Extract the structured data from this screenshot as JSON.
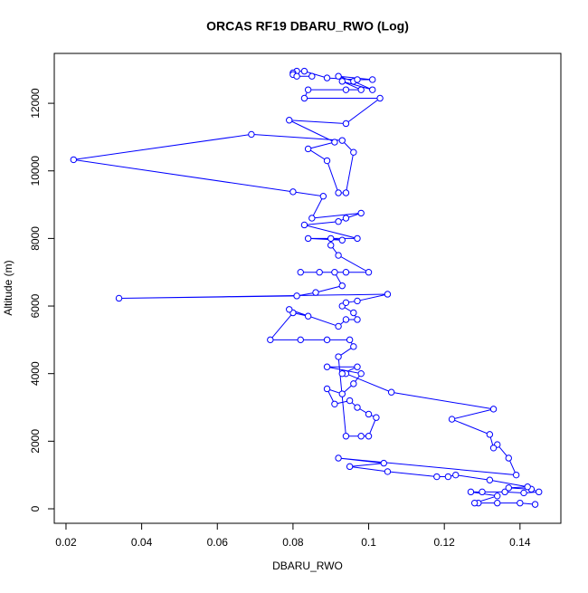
{
  "chart_data": {
    "type": "line",
    "title": "ORCAS RF19 DBARU_RWO (Log)",
    "x_label": "DBARU_RWO",
    "y_label": "Altitude (m)",
    "color": "#0000ff",
    "markers": true,
    "xlim": [
      0.0169,
      0.1508
    ],
    "ylim": [
      -429,
      13476
    ],
    "xticks": [
      0.02,
      0.04,
      0.06,
      0.08,
      0.1,
      0.12,
      0.14
    ],
    "yticks": [
      0,
      2000,
      4000,
      6000,
      8000,
      10000,
      12000
    ],
    "x": [
      0.144,
      0.14,
      0.134,
      0.129,
      0.128,
      0.134,
      0.127,
      0.13,
      0.136,
      0.141,
      0.145,
      0.143,
      0.137,
      0.142,
      0.132,
      0.123,
      0.121,
      0.118,
      0.105,
      0.095,
      0.104,
      0.092,
      0.139,
      0.137,
      0.134,
      0.133,
      0.132,
      0.122,
      0.133,
      0.106,
      0.094,
      0.093,
      0.097,
      0.089,
      0.098,
      0.096,
      0.093,
      0.089,
      0.091,
      0.095,
      0.097,
      0.1,
      0.102,
      0.1,
      0.098,
      0.094,
      0.092,
      0.096,
      0.095,
      0.089,
      0.082,
      0.074,
      0.08,
      0.084,
      0.079,
      0.092,
      0.094,
      0.097,
      0.096,
      0.093,
      0.094,
      0.097,
      0.105,
      0.034,
      0.081,
      0.086,
      0.093,
      0.091,
      0.082,
      0.087,
      0.094,
      0.1,
      0.092,
      0.09,
      0.09,
      0.093,
      0.084,
      0.097,
      0.083,
      0.092,
      0.094,
      0.098,
      0.085,
      0.088,
      0.08,
      0.022,
      0.069,
      0.093,
      0.096,
      0.094,
      0.092,
      0.089,
      0.084,
      0.091,
      0.079,
      0.094,
      0.103,
      0.083,
      0.084,
      0.094,
      0.098,
      0.093,
      0.101,
      0.096,
      0.092,
      0.101,
      0.097,
      0.089,
      0.083,
      0.081,
      0.08,
      0.08,
      0.081,
      0.085
    ],
    "y": [
      130,
      170,
      170,
      170,
      170,
      380,
      500,
      500,
      500,
      470,
      500,
      580,
      620,
      650,
      850,
      1000,
      950,
      950,
      1100,
      1250,
      1350,
      1500,
      1000,
      1500,
      1900,
      1800,
      2200,
      2650,
      2950,
      3450,
      4000,
      4000,
      4200,
      4200,
      4000,
      3700,
      3400,
      3550,
      3100,
      3200,
      3000,
      2800,
      2700,
      2150,
      2150,
      2150,
      4500,
      4800,
      5000,
      5000,
      5000,
      5000,
      5800,
      5700,
      5900,
      5400,
      5600,
      5600,
      5800,
      6000,
      6100,
      6150,
      6350,
      6230,
      6300,
      6400,
      6600,
      7000,
      7000,
      7000,
      7000,
      7000,
      7500,
      7800,
      8000,
      7950,
      8000,
      8000,
      8400,
      8500,
      8600,
      8750,
      8600,
      9250,
      9380,
      10330,
      11080,
      10900,
      10550,
      9350,
      9350,
      10300,
      10650,
      10850,
      11500,
      11400,
      12150,
      12150,
      12400,
      12400,
      12400,
      12650,
      12400,
      12650,
      12800,
      12700,
      12700,
      12750,
      12950,
      12950,
      12900,
      12850,
      12800,
      12800
    ]
  }
}
